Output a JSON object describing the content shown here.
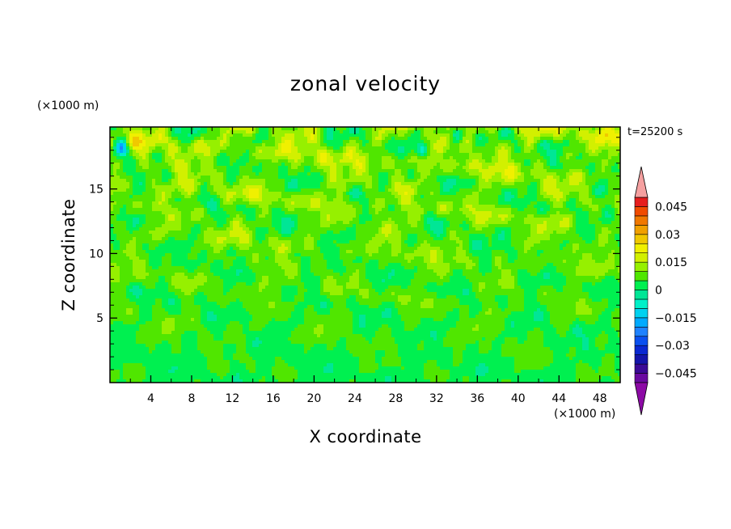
{
  "chart_data": {
    "type": "heatmap",
    "title": "zonal velocity",
    "xlabel": "X coordinate",
    "ylabel": "Z coordinate",
    "x_unit": "(×1000 m)",
    "y_unit": "(×1000 m)",
    "time_label": "t=25200 s",
    "xlim": [
      0,
      50
    ],
    "ylim": [
      0,
      19.8
    ],
    "x_ticks": [
      4,
      8,
      12,
      16,
      20,
      24,
      28,
      32,
      36,
      40,
      44,
      48
    ],
    "y_ticks": [
      5,
      10,
      15
    ],
    "colorbar": {
      "levels": [
        -0.05,
        -0.045,
        -0.04,
        -0.035,
        -0.03,
        -0.025,
        -0.02,
        -0.015,
        -0.01,
        -0.005,
        0,
        0.005,
        0.01,
        0.015,
        0.02,
        0.025,
        0.03,
        0.035,
        0.04,
        0.045,
        0.05
      ],
      "tick_values": [
        0.045,
        0.03,
        0.015,
        0,
        -0.015,
        -0.03,
        -0.045
      ],
      "tick_labels": [
        "0.045",
        "0.03",
        "0.015",
        "0",
        "−0.015",
        "−0.03",
        "−0.045"
      ],
      "colors": [
        "#6a0aa0",
        "#3b0a96",
        "#1414aa",
        "#0a28d2",
        "#0a50f0",
        "#1e82ff",
        "#00aaff",
        "#00d2f0",
        "#00f0c8",
        "#00e696",
        "#00f050",
        "#50e600",
        "#96f000",
        "#d2f000",
        "#f0f000",
        "#f0c800",
        "#f0a000",
        "#f07800",
        "#f04b00",
        "#e61e1e"
      ],
      "under_color": "#8c0aa5",
      "over_color": "#f5a0a0"
    },
    "field_description": "small-scale turbulent u field, mostly between -0.01 and 0.02 m/s; stronger yellow (~0.015-0.02) streaks in upper half, isolated blue cells near top left"
  }
}
